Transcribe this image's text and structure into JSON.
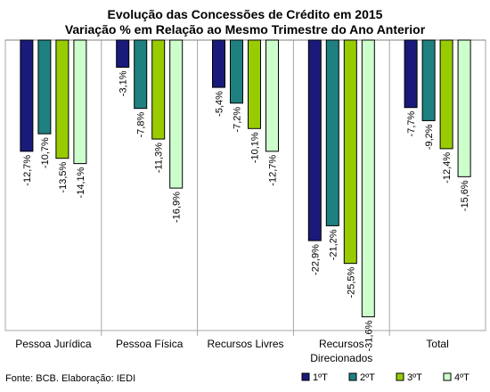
{
  "chart_data": {
    "type": "bar",
    "title": "Evolução das Concessões de Crédito em 2015",
    "subtitle": "Variação % em Relação ao Mesmo Trimestre do Ano Anterior",
    "categories": [
      "Pessoa Jurídica",
      "Pessoa Física",
      "Recursos Livres",
      "Recursos Direcionados",
      "Total"
    ],
    "series": [
      {
        "name": "1ºT",
        "color": "#1a1a7a",
        "values": [
          -12.7,
          -3.1,
          -5.4,
          -22.9,
          -7.7
        ],
        "labels": [
          "-12,7%",
          "-3,1%",
          "-5,4%",
          "-22,9%",
          "-7,7%"
        ]
      },
      {
        "name": "2ºT",
        "color": "#1f8080",
        "values": [
          -10.7,
          -7.8,
          -7.2,
          -21.2,
          -9.2
        ],
        "labels": [
          "-10,7%",
          "-7,8%",
          "-7,2%",
          "-21,2%",
          "-9,2%"
        ]
      },
      {
        "name": "3ºT",
        "color": "#99cc00",
        "values": [
          -13.5,
          -11.3,
          -10.1,
          -25.5,
          -12.4
        ],
        "labels": [
          "-13,5%",
          "-11,3%",
          "-10,1%",
          "-25,5%",
          "-12,4%"
        ]
      },
      {
        "name": "4ºT",
        "color": "#ccffcc",
        "values": [
          -14.1,
          -16.9,
          -12.7,
          -31.6,
          -15.6
        ],
        "labels": [
          "-14,1%",
          "-16,9%",
          "-12,7%",
          "-31,6%",
          "-15,6%"
        ]
      }
    ],
    "ylim": [
      -36,
      0
    ],
    "grid": false,
    "legend": "bottom-right",
    "source": "Fonte: BCB. Elaboração: IEDI"
  }
}
